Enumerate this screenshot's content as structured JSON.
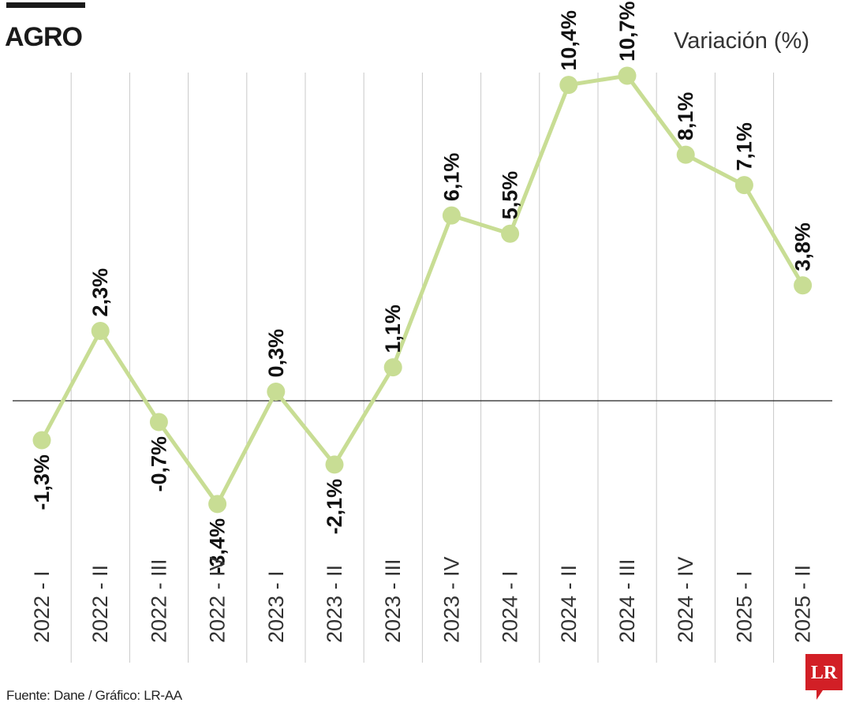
{
  "header": {
    "title": "AGRO",
    "unit_label": "Variación (%)"
  },
  "footer": {
    "source": "Fuente: Dane / Gráfico: LR-AA"
  },
  "logo": {
    "text": "LR",
    "color": "#d21f26"
  },
  "colors": {
    "line": "#c8dd94",
    "marker": "#c8dd94",
    "grid": "#c9c9c9",
    "baseline": "#222222"
  },
  "chart_data": {
    "type": "line",
    "title": "AGRO",
    "ylabel": "Variación (%)",
    "categories": [
      "2022 - I",
      "2022 - II",
      "2022 - III",
      "2022 - IV",
      "2023 - I",
      "2023 - II",
      "2023 - III",
      "2023 - IV",
      "2024 - I",
      "2024 - II",
      "2024 - III",
      "2024 - IV",
      "2025 - I",
      "2025 - II"
    ],
    "values": [
      -1.3,
      2.3,
      -0.7,
      -3.4,
      0.3,
      -2.1,
      1.1,
      6.1,
      5.5,
      10.4,
      10.7,
      8.1,
      7.1,
      3.8
    ],
    "labels": [
      "-1,3%",
      "2,3%",
      "-0,7%",
      "-3,4%",
      "0,3%",
      "-2,1%",
      "1,1%",
      "6,1%",
      "5,5%",
      "10,4%",
      "10,7%",
      "8,1%",
      "7,1%",
      "3,8%"
    ],
    "ylim": [
      -4,
      11
    ],
    "grid": true,
    "legend": "none"
  }
}
